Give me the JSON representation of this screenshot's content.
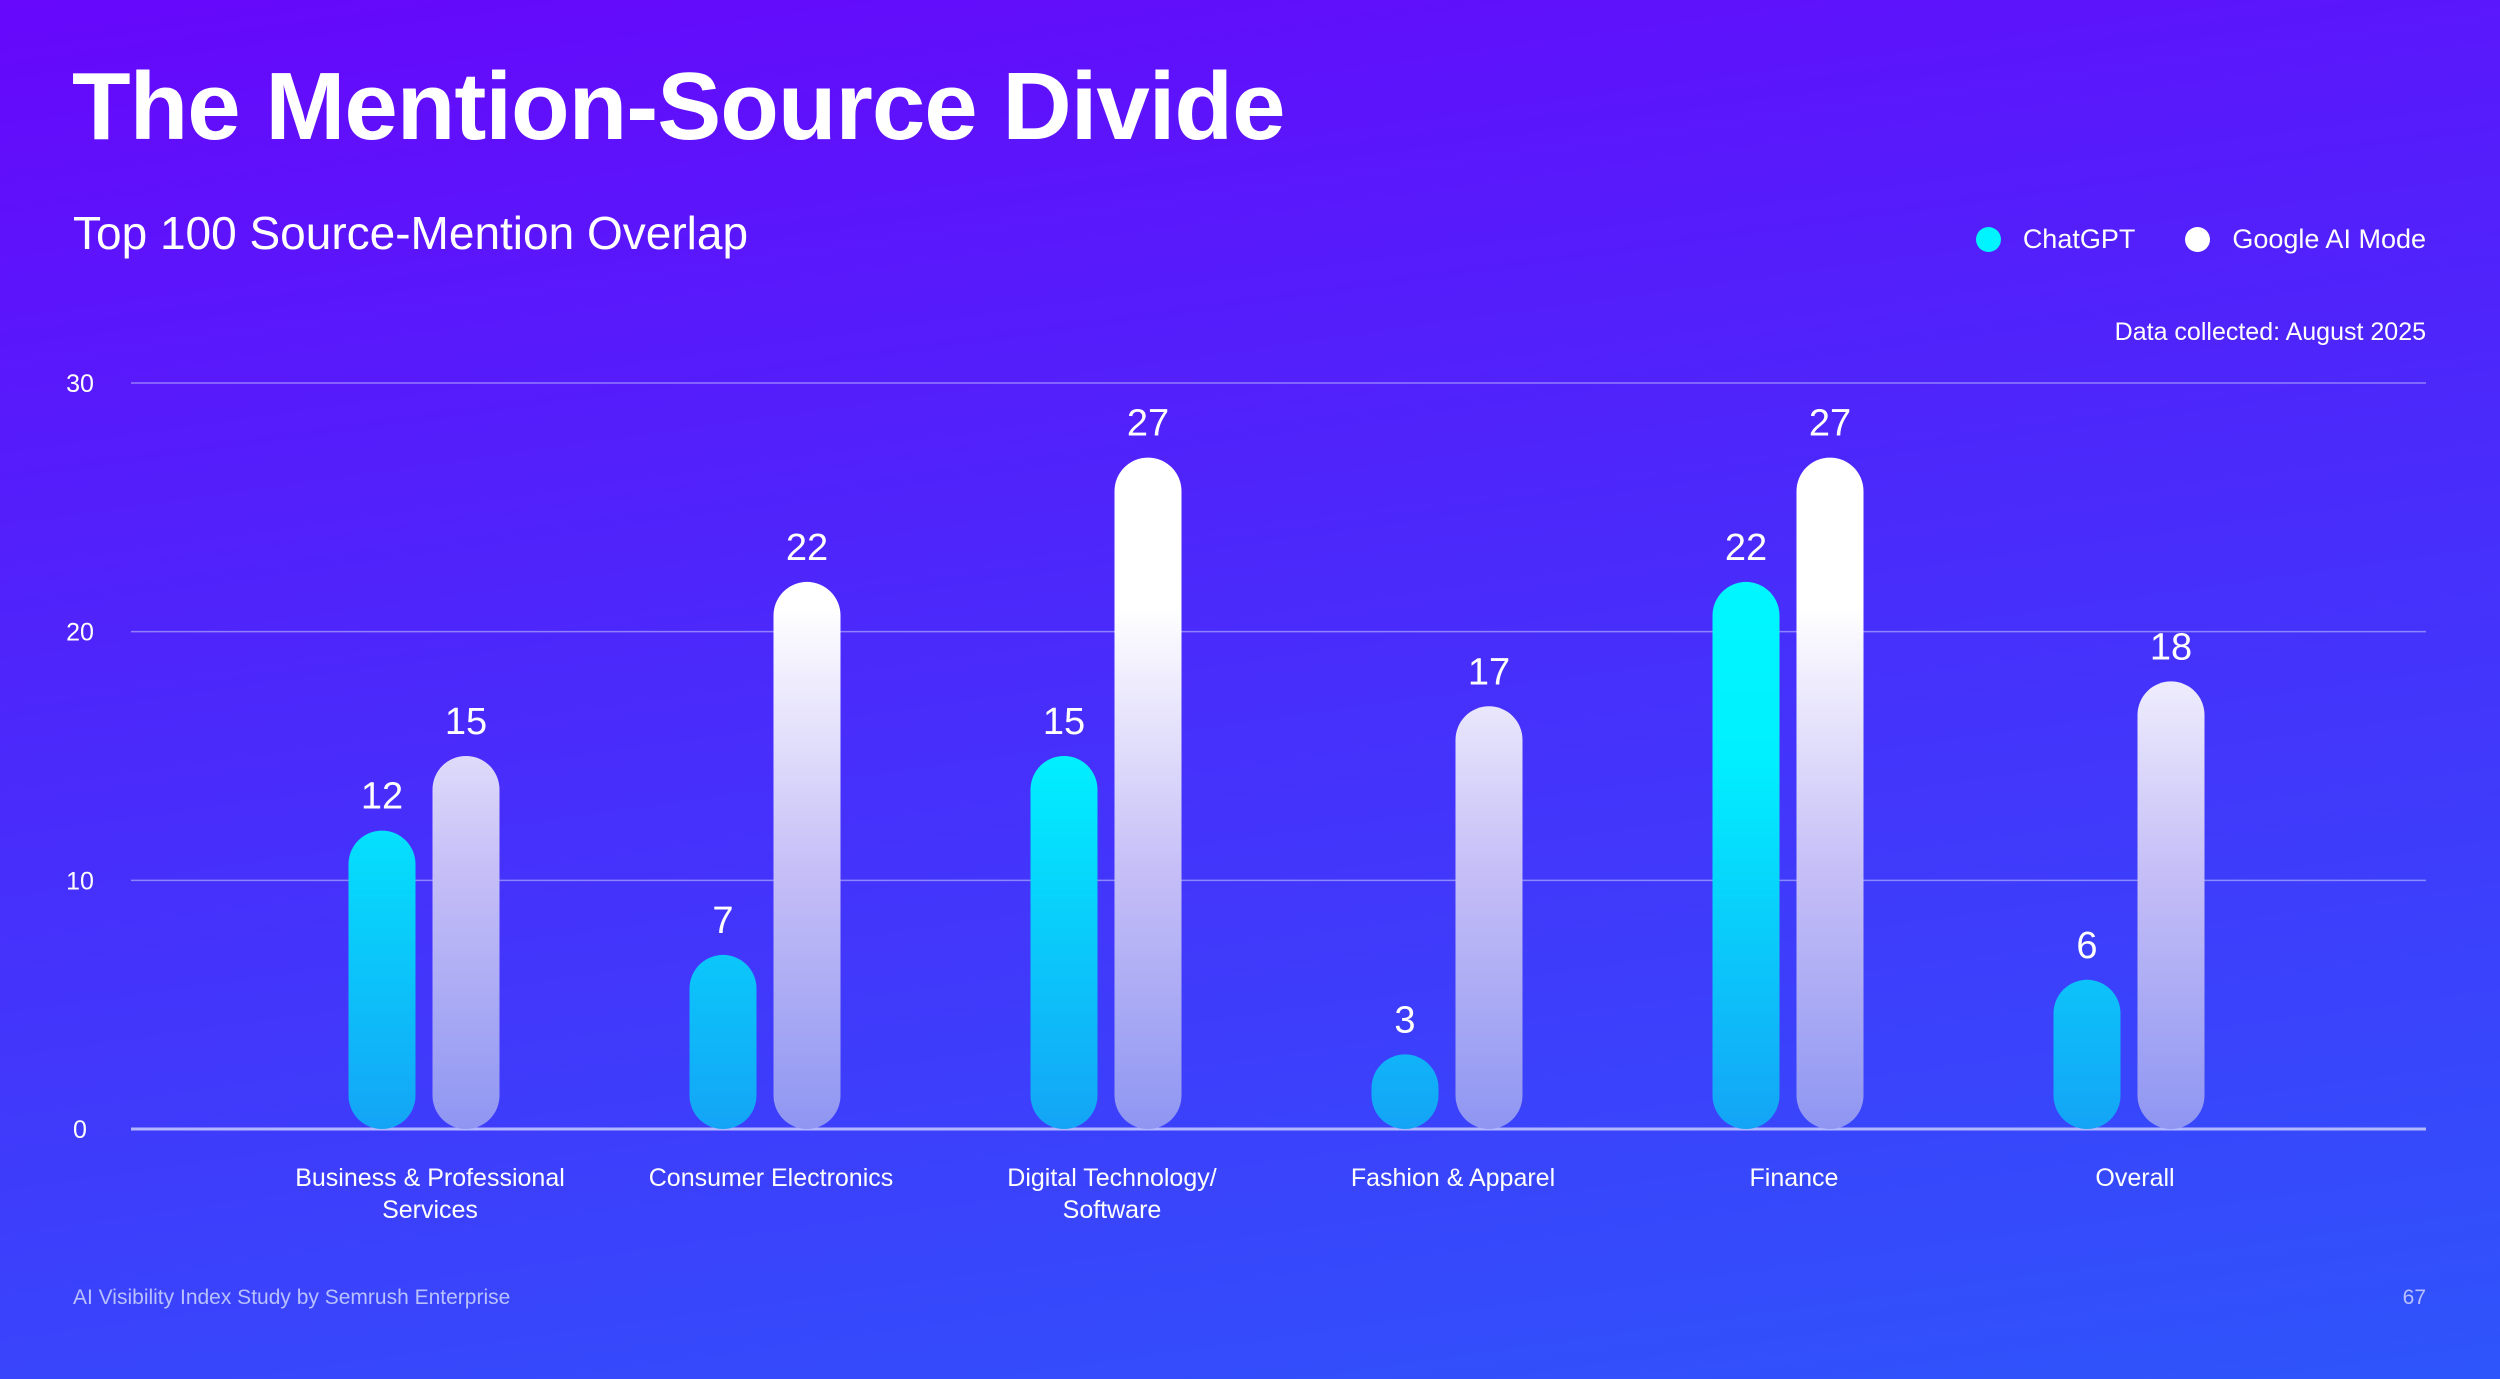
{
  "header": {
    "title": "The Mention-Source Divide",
    "subtitle": "Top 100 Source-Mention Overlap",
    "data_note": "Data collected: August 2025"
  },
  "footer": {
    "credit": "AI Visibility Index Study by Semrush Enterprise",
    "page_number": "67"
  },
  "colors": {
    "chatgpt": "#00f4ff",
    "google": "#ffffff"
  },
  "chart_data": {
    "type": "bar",
    "title": "Top 100 Source-Mention Overlap",
    "xlabel": "",
    "ylabel": "",
    "ylim": [
      0,
      30
    ],
    "yticks": [
      0,
      10,
      20,
      30
    ],
    "grid": true,
    "legend_position": "top-right",
    "categories": [
      [
        "Business & Professional",
        "Services"
      ],
      [
        "Consumer Electronics"
      ],
      [
        "Digital Technology/",
        "Software"
      ],
      [
        "Fashion & Apparel"
      ],
      [
        "Finance"
      ],
      [
        "Overall"
      ]
    ],
    "series": [
      {
        "name": "ChatGPT",
        "values": [
          12,
          7,
          15,
          3,
          22,
          6
        ]
      },
      {
        "name": "Google AI Mode",
        "values": [
          15,
          22,
          27,
          17,
          27,
          18
        ]
      }
    ]
  }
}
